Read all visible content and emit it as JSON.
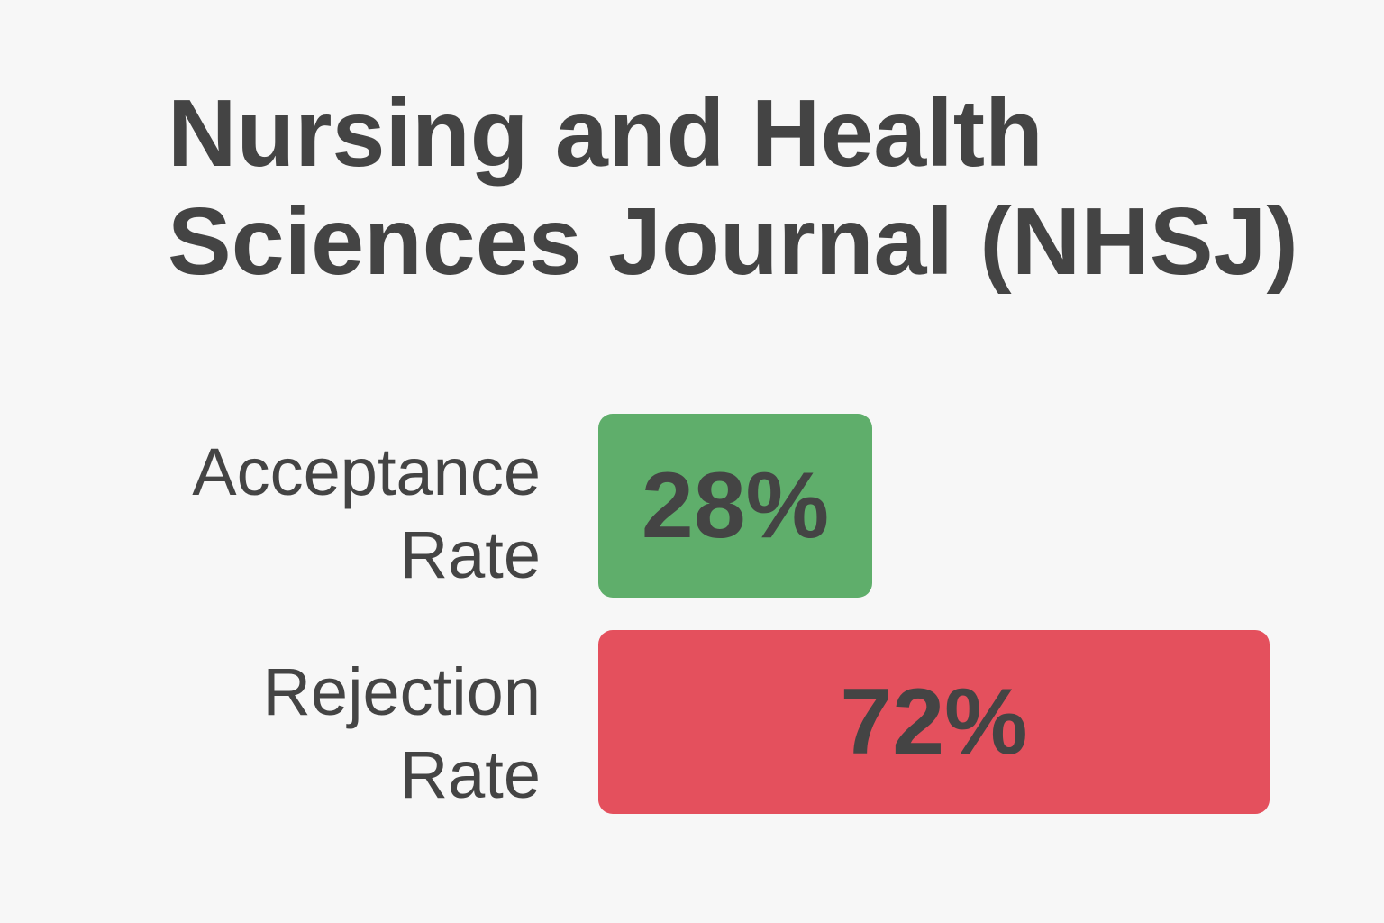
{
  "chart_data": {
    "type": "bar",
    "orientation": "horizontal",
    "title": [
      "Nursing and Health",
      "Sciences Journal (NHSJ)"
    ],
    "categories": [
      [
        "Acceptance",
        "Rate"
      ],
      [
        "Rejection",
        "Rate"
      ]
    ],
    "values": [
      28,
      72
    ],
    "value_labels": [
      "28%",
      "72%"
    ],
    "colors": [
      "#5fae6b",
      "#e4505d"
    ],
    "xlim": [
      0,
      72
    ],
    "grid": false,
    "legend": "none"
  }
}
